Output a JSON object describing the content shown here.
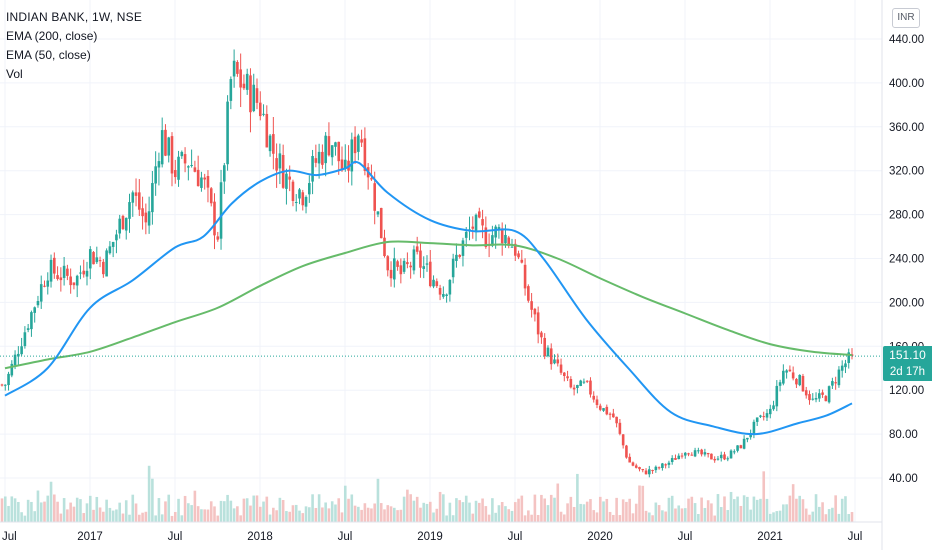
{
  "legend": {
    "title": "INDIAN BANK, 1W, NSE",
    "ema200": "EMA (200, close)",
    "ema50": "EMA (50, close)",
    "vol": "Vol"
  },
  "currency": "INR",
  "last_price": "151.10",
  "countdown": "2d 17h",
  "colors": {
    "up": "#26a69a",
    "down": "#ef5350",
    "ema200": "#66bb6a",
    "ema50": "#2196f3",
    "last_line": "#26a69a",
    "volume_up": "#b9e1dc",
    "volume_down": "#f4c3c2"
  },
  "chart_data": {
    "type": "candlestick",
    "title": "INDIAN BANK, 1W, NSE",
    "y_ticks": [
      "440.00",
      "400.00",
      "360.00",
      "320.00",
      "280.00",
      "240.00",
      "200.00",
      "160.00",
      "120.00",
      "80.00",
      "40.00"
    ],
    "x_ticks": [
      "Jul",
      "2017",
      "Jul",
      "2018",
      "Jul",
      "2019",
      "Jul",
      "2020",
      "Jul",
      "2021",
      "Jul"
    ],
    "ylim": [
      0,
      480
    ],
    "close_path": [
      [
        "2016-07",
        125
      ],
      [
        "2016-08",
        160
      ],
      [
        "2016-10",
        230
      ],
      [
        "2016-12",
        220
      ],
      [
        "2017-01",
        245
      ],
      [
        "2017-02",
        235
      ],
      [
        "2017-04",
        300
      ],
      [
        "2017-05",
        270
      ],
      [
        "2017-06",
        355
      ],
      [
        "2017-07",
        320
      ],
      [
        "2017-08",
        330
      ],
      [
        "2017-09",
        310
      ],
      [
        "2017-10",
        260
      ],
      [
        "2017-11",
        410
      ],
      [
        "2017-12",
        395
      ],
      [
        "2018-01",
        380
      ],
      [
        "2018-02",
        335
      ],
      [
        "2018-03",
        310
      ],
      [
        "2018-04",
        300
      ],
      [
        "2018-05",
        330
      ],
      [
        "2018-06",
        350
      ],
      [
        "2018-07",
        315
      ],
      [
        "2018-08",
        360
      ],
      [
        "2018-09",
        300
      ],
      [
        "2018-10",
        235
      ],
      [
        "2018-11",
        225
      ],
      [
        "2018-12",
        240
      ],
      [
        "2019-01",
        225
      ],
      [
        "2019-02",
        210
      ],
      [
        "2019-03",
        245
      ],
      [
        "2019-04",
        270
      ],
      [
        "2019-05",
        260
      ],
      [
        "2019-06",
        265
      ],
      [
        "2019-07",
        250
      ],
      [
        "2019-08",
        200
      ],
      [
        "2019-09",
        160
      ],
      [
        "2019-10",
        140
      ],
      [
        "2019-11",
        120
      ],
      [
        "2019-12",
        125
      ],
      [
        "2020-01",
        105
      ],
      [
        "2020-02",
        95
      ],
      [
        "2020-03",
        55
      ],
      [
        "2020-04",
        45
      ],
      [
        "2020-05",
        48
      ],
      [
        "2020-06",
        55
      ],
      [
        "2020-07",
        65
      ],
      [
        "2020-08",
        62
      ],
      [
        "2020-09",
        58
      ],
      [
        "2020-10",
        60
      ],
      [
        "2020-11",
        70
      ],
      [
        "2020-12",
        90
      ],
      [
        "2021-01",
        100
      ],
      [
        "2021-02",
        140
      ],
      [
        "2021-03",
        130
      ],
      [
        "2021-04",
        110
      ],
      [
        "2021-05",
        115
      ],
      [
        "2021-06",
        140
      ],
      [
        "2021-06-25",
        151.1
      ]
    ],
    "ema50": [
      [
        "2016-07",
        115
      ],
      [
        "2016-10",
        140
      ],
      [
        "2017-01",
        195
      ],
      [
        "2017-04",
        220
      ],
      [
        "2017-07",
        250
      ],
      [
        "2017-09",
        260
      ],
      [
        "2017-11",
        290
      ],
      [
        "2018-01",
        310
      ],
      [
        "2018-03",
        320
      ],
      [
        "2018-05",
        316
      ],
      [
        "2018-07",
        322
      ],
      [
        "2018-08",
        327
      ],
      [
        "2018-10",
        300
      ],
      [
        "2019-01",
        275
      ],
      [
        "2019-04",
        265
      ],
      [
        "2019-07",
        265
      ],
      [
        "2019-09",
        240
      ],
      [
        "2019-12",
        185
      ],
      [
        "2020-03",
        140
      ],
      [
        "2020-06",
        100
      ],
      [
        "2020-09",
        87
      ],
      [
        "2020-12",
        80
      ],
      [
        "2021-03",
        90
      ],
      [
        "2021-05",
        97
      ],
      [
        "2021-06-25",
        108
      ]
    ],
    "ema200": [
      [
        "2016-07",
        140
      ],
      [
        "2016-10",
        148
      ],
      [
        "2017-01",
        155
      ],
      [
        "2017-04",
        168
      ],
      [
        "2017-07",
        182
      ],
      [
        "2017-10",
        195
      ],
      [
        "2018-01",
        215
      ],
      [
        "2018-04",
        233
      ],
      [
        "2018-07",
        245
      ],
      [
        "2018-10",
        255
      ],
      [
        "2019-01",
        254
      ],
      [
        "2019-04",
        252
      ],
      [
        "2019-07",
        252
      ],
      [
        "2019-10",
        240
      ],
      [
        "2020-01",
        222
      ],
      [
        "2020-04",
        205
      ],
      [
        "2020-07",
        190
      ],
      [
        "2020-10",
        175
      ],
      [
        "2021-01",
        162
      ],
      [
        "2021-04",
        155
      ],
      [
        "2021-06-25",
        152
      ]
    ]
  }
}
